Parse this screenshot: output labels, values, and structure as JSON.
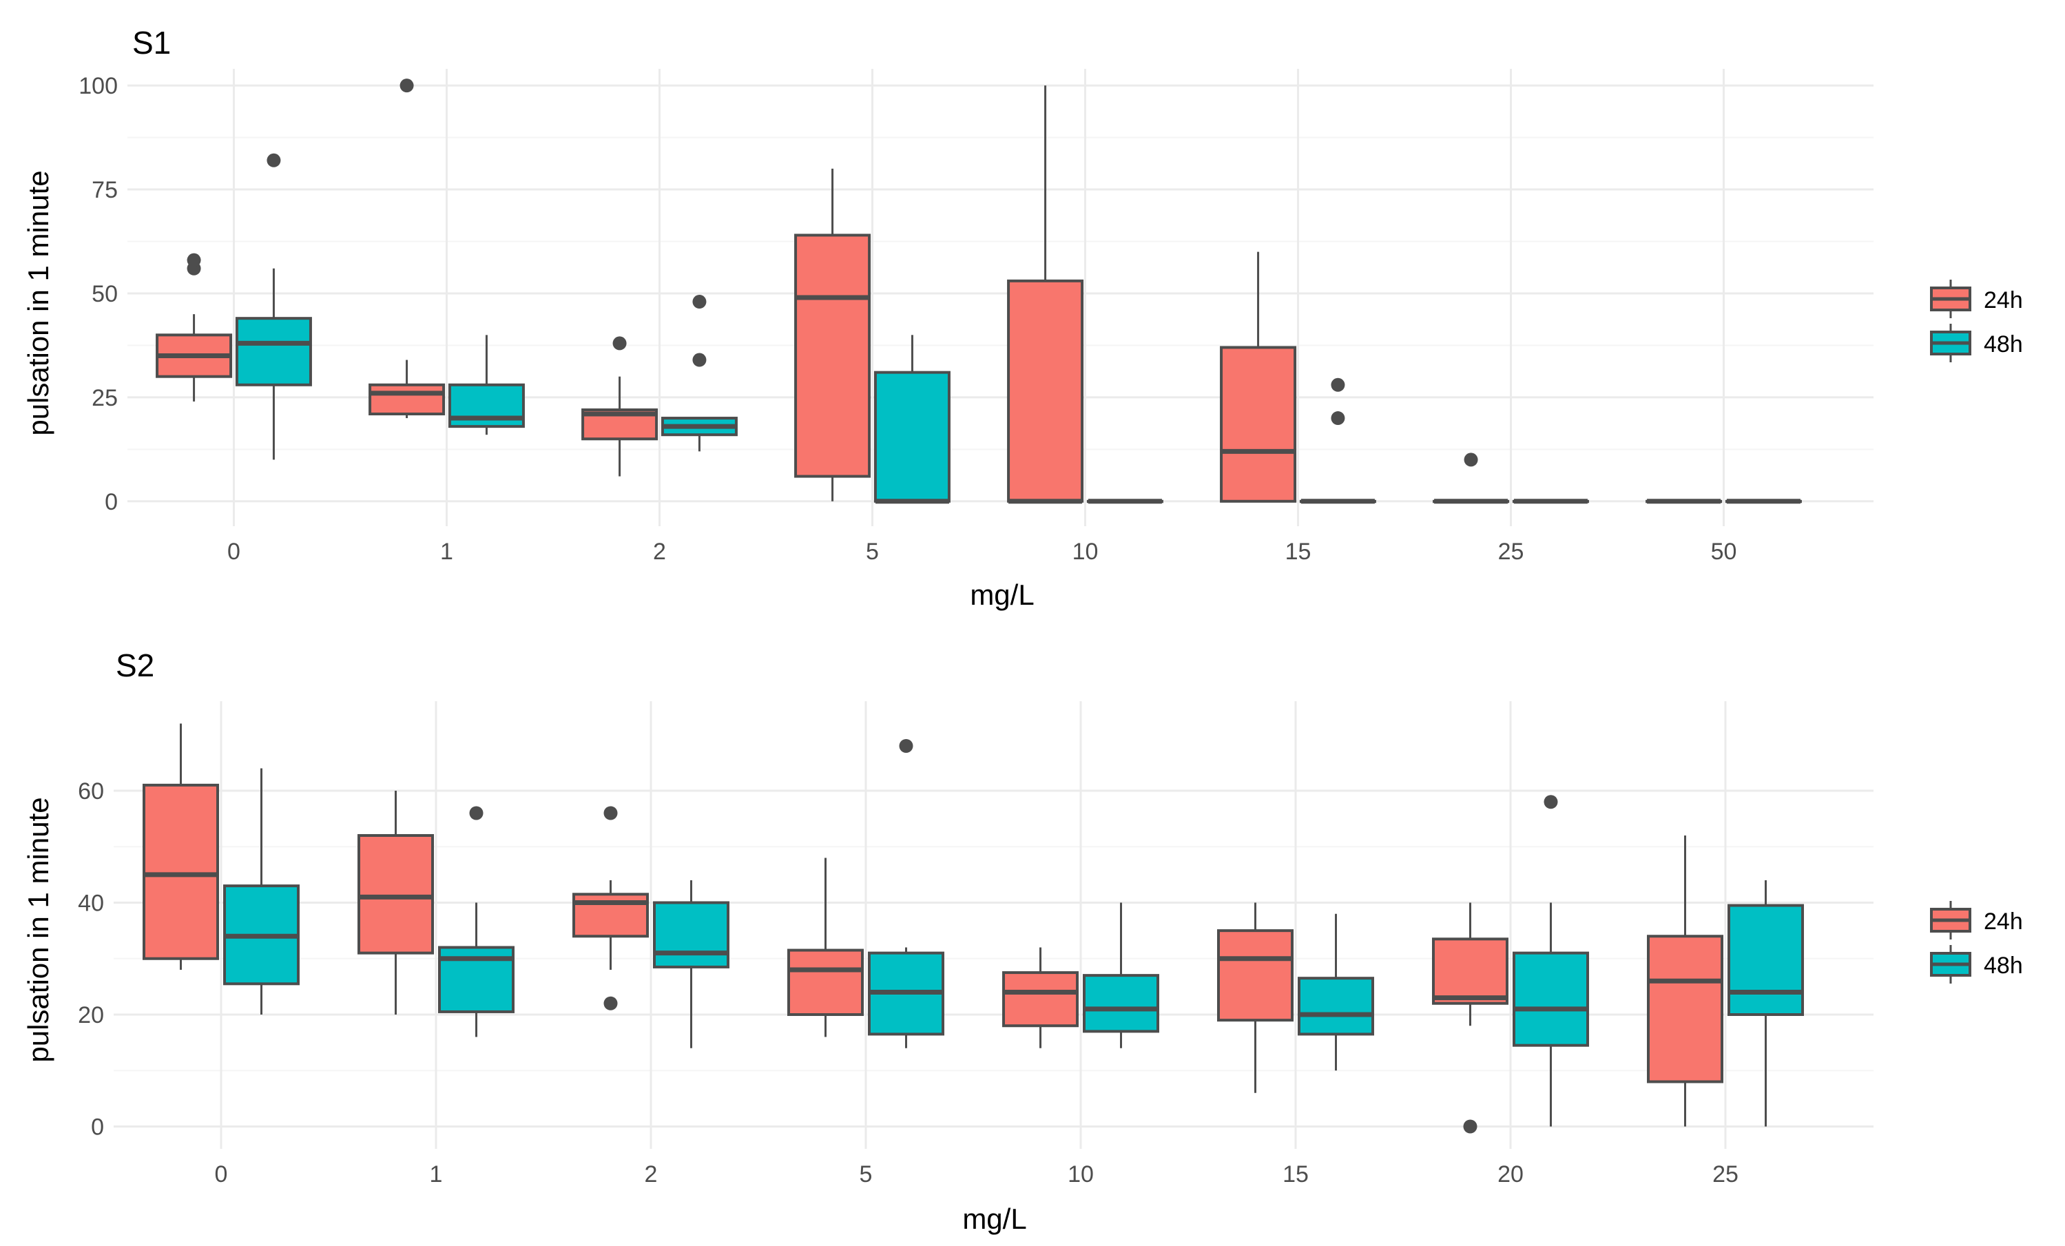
{
  "colors": {
    "h24": "#F8766D",
    "h48": "#00BFC4",
    "outline": "#4d4d4d",
    "grid_major": "#ebebeb",
    "grid_minor": "#f5f5f5"
  },
  "legend": {
    "labels": [
      "24h",
      "48h"
    ]
  },
  "chart_data": [
    {
      "type": "boxplot",
      "title": "S1",
      "xlabel": "mg/L",
      "ylabel": "pulsation in 1 minute",
      "ylim": [
        -6,
        104
      ],
      "yticks": [
        0,
        25,
        50,
        75,
        100
      ],
      "categories": [
        "0",
        "1",
        "2",
        "5",
        "10",
        "15",
        "25",
        "50"
      ],
      "series": [
        {
          "name": "24h",
          "color": "#F8766D",
          "boxes": [
            {
              "min": 24,
              "q1": 30,
              "median": 35,
              "q3": 40,
              "max": 45,
              "outliers": [
                56,
                58
              ]
            },
            {
              "min": 20,
              "q1": 21,
              "median": 26,
              "q3": 28,
              "max": 34,
              "outliers": [
                100
              ]
            },
            {
              "min": 6,
              "q1": 15,
              "median": 21,
              "q3": 22,
              "max": 30,
              "outliers": [
                38
              ]
            },
            {
              "min": 0,
              "q1": 6,
              "median": 49,
              "q3": 64,
              "max": 80,
              "outliers": []
            },
            {
              "min": 0,
              "q1": 0,
              "median": 0,
              "q3": 53,
              "max": 100,
              "outliers": []
            },
            {
              "min": 0,
              "q1": 0,
              "median": 12,
              "q3": 37,
              "max": 60,
              "outliers": []
            },
            {
              "min": 0,
              "q1": 0,
              "median": 0,
              "q3": 0,
              "max": 0,
              "outliers": [
                10
              ]
            },
            {
              "min": 0,
              "q1": 0,
              "median": 0,
              "q3": 0,
              "max": 0,
              "outliers": []
            }
          ]
        },
        {
          "name": "48h",
          "color": "#00BFC4",
          "boxes": [
            {
              "min": 10,
              "q1": 28,
              "median": 38,
              "q3": 44,
              "max": 56,
              "outliers": [
                82
              ]
            },
            {
              "min": 16,
              "q1": 18,
              "median": 20,
              "q3": 28,
              "max": 40,
              "outliers": []
            },
            {
              "min": 12,
              "q1": 16,
              "median": 18,
              "q3": 20,
              "max": 20,
              "outliers": [
                34,
                48
              ]
            },
            {
              "min": 0,
              "q1": 0,
              "median": 0,
              "q3": 31,
              "max": 40,
              "outliers": []
            },
            {
              "min": 0,
              "q1": 0,
              "median": 0,
              "q3": 0,
              "max": 0,
              "outliers": []
            },
            {
              "min": 0,
              "q1": 0,
              "median": 0,
              "q3": 0,
              "max": 0,
              "outliers": [
                20,
                28
              ]
            },
            {
              "min": 0,
              "q1": 0,
              "median": 0,
              "q3": 0,
              "max": 0,
              "outliers": []
            },
            {
              "min": 0,
              "q1": 0,
              "median": 0,
              "q3": 0,
              "max": 0,
              "outliers": []
            }
          ]
        }
      ]
    },
    {
      "type": "boxplot",
      "title": "S2",
      "xlabel": "mg/L",
      "ylabel": "pulsation in 1 minute",
      "ylim": [
        -4,
        76
      ],
      "yticks": [
        0,
        20,
        40,
        60
      ],
      "categories": [
        "0",
        "1",
        "2",
        "5",
        "10",
        "15",
        "20",
        "25"
      ],
      "series": [
        {
          "name": "24h",
          "color": "#F8766D",
          "boxes": [
            {
              "min": 28,
              "q1": 30,
              "median": 45,
              "q3": 61,
              "max": 72,
              "outliers": []
            },
            {
              "min": 20,
              "q1": 31,
              "median": 41,
              "q3": 52,
              "max": 60,
              "outliers": []
            },
            {
              "min": 28,
              "q1": 34,
              "median": 40,
              "q3": 41.5,
              "max": 44,
              "outliers": [
                22,
                56
              ]
            },
            {
              "min": 16,
              "q1": 20,
              "median": 28,
              "q3": 31.5,
              "max": 48,
              "outliers": []
            },
            {
              "min": 14,
              "q1": 18,
              "median": 24,
              "q3": 27.5,
              "max": 32,
              "outliers": []
            },
            {
              "min": 6,
              "q1": 19,
              "median": 30,
              "q3": 35,
              "max": 40,
              "outliers": []
            },
            {
              "min": 18,
              "q1": 22,
              "median": 23,
              "q3": 33.5,
              "max": 40,
              "outliers": [
                0
              ]
            },
            {
              "min": 0,
              "q1": 8,
              "median": 26,
              "q3": 34,
              "max": 52,
              "outliers": []
            }
          ]
        },
        {
          "name": "48h",
          "color": "#00BFC4",
          "boxes": [
            {
              "min": 20,
              "q1": 25.5,
              "median": 34,
              "q3": 43,
              "max": 64,
              "outliers": []
            },
            {
              "min": 16,
              "q1": 20.5,
              "median": 30,
              "q3": 32,
              "max": 40,
              "outliers": [
                56
              ]
            },
            {
              "min": 14,
              "q1": 28.5,
              "median": 31,
              "q3": 40,
              "max": 44,
              "outliers": []
            },
            {
              "min": 14,
              "q1": 16.5,
              "median": 24,
              "q3": 31,
              "max": 32,
              "outliers": [
                68
              ]
            },
            {
              "min": 14,
              "q1": 17,
              "median": 21,
              "q3": 27,
              "max": 40,
              "outliers": []
            },
            {
              "min": 10,
              "q1": 16.5,
              "median": 20,
              "q3": 26.5,
              "max": 38,
              "outliers": []
            },
            {
              "min": 0,
              "q1": 14.5,
              "median": 21,
              "q3": 31,
              "max": 40,
              "outliers": [
                58
              ]
            },
            {
              "min": 0,
              "q1": 20,
              "median": 24,
              "q3": 39.5,
              "max": 44,
              "outliers": []
            }
          ]
        }
      ]
    }
  ]
}
